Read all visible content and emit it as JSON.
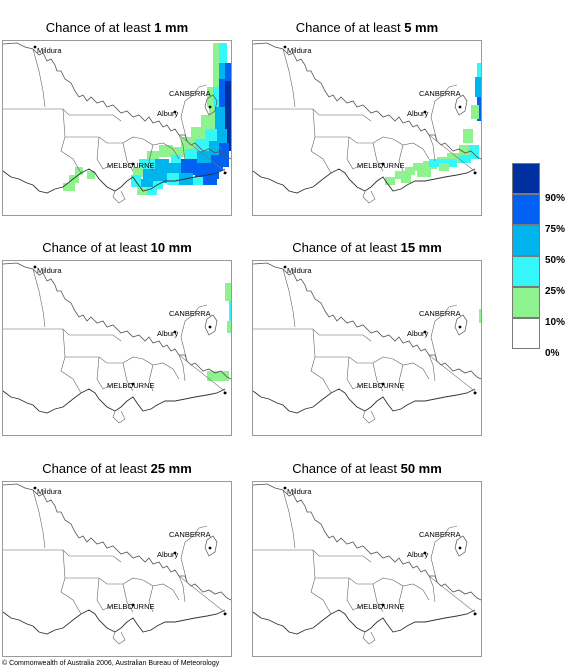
{
  "title_prefix": "Chance of at least",
  "panels": [
    {
      "threshold": "1 mm"
    },
    {
      "threshold": "5 mm"
    },
    {
      "threshold": "10 mm"
    },
    {
      "threshold": "15 mm"
    },
    {
      "threshold": "25 mm"
    },
    {
      "threshold": "50 mm"
    }
  ],
  "places": {
    "mildura": "Mildura",
    "canberra": "CANBERRA",
    "albury": "Albury",
    "melbourne": "MELBOURNE"
  },
  "legend": {
    "labels": [
      "90%",
      "75%",
      "50%",
      "25%",
      "10%",
      "0%"
    ],
    "colors": [
      "#002fa0",
      "#0061f2",
      "#00b5ee",
      "#35f6f8",
      "#8ef28e",
      "#ffffff"
    ]
  },
  "footer": "© Commonwealth of Australia 2006, Australian Bureau of Meteorology"
}
